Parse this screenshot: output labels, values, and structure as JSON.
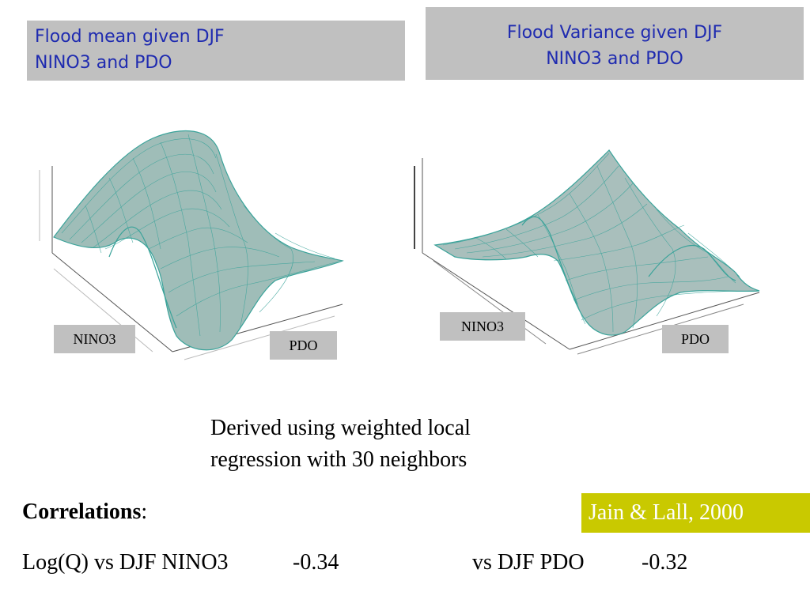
{
  "title_left": {
    "line1": "Flood mean given DJF",
    "line2": "NINO3 and PDO"
  },
  "title_right": {
    "line1": "Flood Variance given DJF",
    "line2": "NINO3 and PDO"
  },
  "plot_left": {
    "axis_x_label": "NINO3",
    "axis_y_label": "PDO"
  },
  "plot_right": {
    "axis_x_label": "NINO3",
    "axis_y_label": "PDO"
  },
  "description": {
    "line1": "Derived using weighted local",
    "line2": "regression with 30 neighbors"
  },
  "correlations": {
    "heading": "Correlations",
    "colon": ":"
  },
  "citation": "Jain & Lall, 2000",
  "stats": {
    "nino3_label": "Log(Q) vs DJF NINO3",
    "nino3_value": "-0.34",
    "pdo_label": "vs DJF PDO",
    "pdo_value": "-0.32"
  },
  "colors": {
    "title_text": "#1f2bb0",
    "title_box": "#c0c0c0",
    "citation_bg": "#c9c900",
    "surface_fill": "#9fbdb8",
    "surface_mesh": "#3aa39a"
  }
}
